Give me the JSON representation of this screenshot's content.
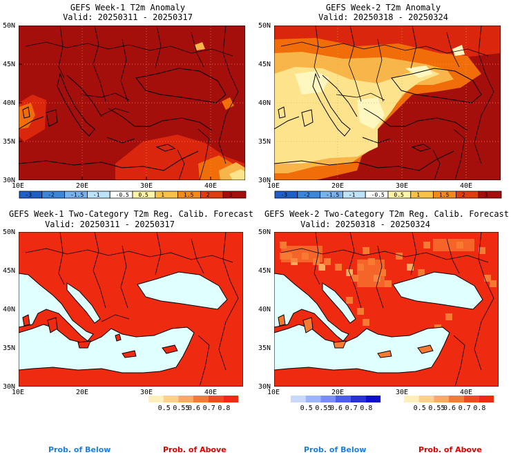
{
  "colors": {
    "sea_prob": "#e0ffff",
    "anom_darkred": "#a50f0b",
    "anom_red": "#d9260c",
    "anom_orange": "#f06d0a",
    "anom_light": "#f8b64a",
    "anom_pale": "#fde48c",
    "anom_cream": "#fff7c0",
    "prob_above_label": "#e00000",
    "prob_below_label": "#1c7ee0"
  },
  "panels": [
    {
      "id": "w1_anom",
      "title": "GEFS Week-1 T2m Anomaly",
      "valid": "Valid: 20250311 - 20250317",
      "lat_labels": [
        "50N",
        "45N",
        "40N",
        "35N",
        "30N"
      ],
      "lon_labels": [
        "10E",
        "20E",
        "30E",
        "40E"
      ]
    },
    {
      "id": "w2_anom",
      "title": "GEFS Week-2 T2m Anomaly",
      "valid": "Valid: 20250318 - 20250324",
      "lat_labels": [
        "50N",
        "45N",
        "40N",
        "35N",
        "30N"
      ],
      "lon_labels": [
        "10E",
        "20E",
        "30E",
        "40E"
      ]
    },
    {
      "id": "w1_prob",
      "title": "GEFS Week-1 Two-Category T2m Reg. Calib. Forecast",
      "valid": "Valid: 20250311 - 20250317",
      "lat_labels": [
        "50N",
        "45N",
        "40N",
        "35N",
        "30N"
      ],
      "lon_labels": [
        "10E",
        "20E",
        "30E",
        "40E"
      ]
    },
    {
      "id": "w2_prob",
      "title": "GEFS Week-2 Two-Category T2m Reg. Calib. Forecast",
      "valid": "Valid: 20250318 - 20250324",
      "lat_labels": [
        "50N",
        "45N",
        "40N",
        "35N",
        "30N"
      ],
      "lon_labels": [
        "10E",
        "20E",
        "30E",
        "40E"
      ]
    }
  ],
  "anomaly_colorbar": {
    "ticks": [
      "-3",
      "-2",
      "-1.5",
      "-1",
      "-0.5",
      "0.5",
      "1",
      "1.5",
      "2",
      "3"
    ],
    "colors": [
      "#1c5fc6",
      "#3b86d9",
      "#78b1ec",
      "#bde2fb",
      "#ffffff",
      "#fff3a7",
      "#f9c04a",
      "#f08a1c",
      "#de3d0e",
      "#a50f0b"
    ]
  },
  "prob_above_colorbar": {
    "ticks": [
      "0.5",
      "0.55",
      "0.6",
      "0.7",
      "0.8"
    ],
    "colors": [
      "#fff0bb",
      "#fdd08b",
      "#fbaa60",
      "#f77a33",
      "#f04a1a",
      "#ee2a10"
    ]
  },
  "prob_below_colorbar": {
    "ticks": [
      "0.5",
      "0.55",
      "0.6",
      "0.7",
      "0.8"
    ],
    "colors": [
      "#c8d8ff",
      "#9fb4ff",
      "#7a8cff",
      "#4d5cf0",
      "#2a30d8",
      "#0e10c8"
    ]
  },
  "legend_labels": {
    "below": "Prob. of Below",
    "above": "Prob. of Above"
  }
}
